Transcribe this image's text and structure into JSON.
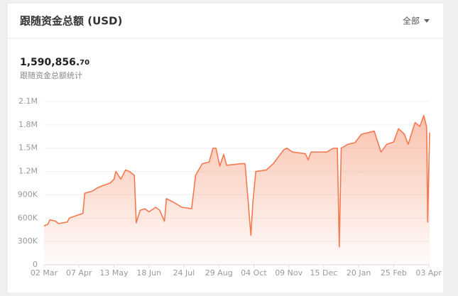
{
  "header": {
    "title": "跟随资金总额 (USD)",
    "filter": "全部"
  },
  "summary": {
    "amount_integer": "1,590,856.",
    "amount_decimal": "70",
    "caption": "跟随资金总额统计"
  },
  "chart_data": {
    "type": "area",
    "color": "#f4794e",
    "grid": true,
    "x": [
      0,
      4,
      6,
      12,
      15,
      24,
      26,
      35,
      40,
      42,
      50,
      55,
      61,
      68,
      72,
      74,
      79,
      84,
      88,
      93,
      95,
      99,
      104,
      108,
      115,
      119,
      124,
      126,
      134,
      142,
      152,
      156,
      163,
      170,
      174,
      177,
      181,
      185,
      188,
      203,
      207,
      210,
      213,
      215,
      218,
      229,
      236,
      242,
      247,
      250,
      256,
      269,
      272,
      275,
      291,
      298,
      302,
      304,
      306,
      313,
      320,
      327,
      334,
      340,
      347,
      353,
      360,
      365,
      371,
      375,
      382,
      387,
      391,
      394,
      395,
      397
    ],
    "values": [
      500000,
      520000,
      580000,
      560000,
      530000,
      550000,
      600000,
      640000,
      660000,
      920000,
      950000,
      990000,
      1020000,
      1050000,
      1100000,
      1200000,
      1100000,
      1220000,
      1200000,
      1150000,
      540000,
      700000,
      720000,
      680000,
      740000,
      700000,
      560000,
      850000,
      800000,
      740000,
      720000,
      1150000,
      1300000,
      1320000,
      1500000,
      1500000,
      1270000,
      1420000,
      1280000,
      1300000,
      1300000,
      850000,
      380000,
      800000,
      1200000,
      1220000,
      1300000,
      1400000,
      1480000,
      1500000,
      1450000,
      1430000,
      1350000,
      1450000,
      1450000,
      1500000,
      1500000,
      230000,
      1500000,
      1550000,
      1570000,
      1680000,
      1700000,
      1720000,
      1450000,
      1550000,
      1580000,
      1750000,
      1680000,
      1550000,
      1830000,
      1780000,
      1920000,
      1770000,
      550000,
      1700000
    ],
    "xlim": [
      0,
      397
    ],
    "xticks": [
      {
        "value": 0,
        "label": "02 Mar"
      },
      {
        "value": 36,
        "label": "07 Apr"
      },
      {
        "value": 72,
        "label": "13 May"
      },
      {
        "value": 108,
        "label": "18 Jun"
      },
      {
        "value": 144,
        "label": "24 Jul"
      },
      {
        "value": 180,
        "label": "29 Aug"
      },
      {
        "value": 216,
        "label": "04 Oct"
      },
      {
        "value": 252,
        "label": "09 Nov"
      },
      {
        "value": 288,
        "label": "15 Dec"
      },
      {
        "value": 324,
        "label": "20 Jan"
      },
      {
        "value": 360,
        "label": "25 Feb"
      },
      {
        "value": 396,
        "label": "03 Apr"
      }
    ],
    "ylim": [
      0,
      2100000
    ],
    "yticks": [
      0,
      {
        "value": 300000,
        "label": "300K"
      },
      {
        "value": 600000,
        "label": "600K"
      },
      {
        "value": 900000,
        "label": "900K"
      },
      {
        "value": 1200000,
        "label": "1.2M"
      },
      {
        "value": 1500000,
        "label": "1.5M"
      },
      {
        "value": 1800000,
        "label": "1.8M"
      },
      {
        "value": 2100000,
        "label": "2.1M"
      }
    ]
  }
}
